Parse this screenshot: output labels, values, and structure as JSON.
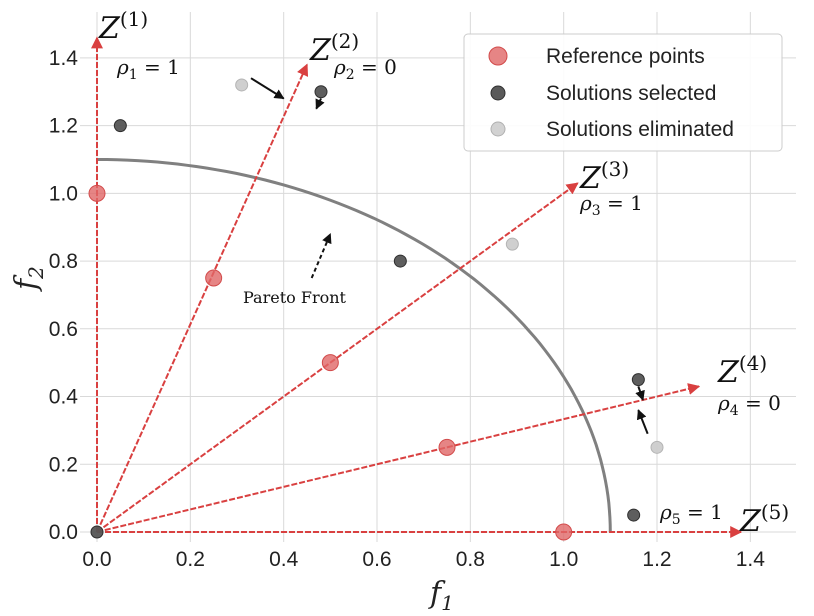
{
  "chart_data": {
    "type": "scatter",
    "xlabel": "f",
    "xlabel_sub": "1",
    "ylabel": "f",
    "ylabel_sub": "2",
    "xlim": [
      0.0,
      1.5
    ],
    "ylim": [
      0.0,
      1.5
    ],
    "xticks": [
      "0.0",
      "0.2",
      "0.4",
      "0.6",
      "0.8",
      "1.0",
      "1.2",
      "1.4"
    ],
    "yticks": [
      "0.0",
      "0.2",
      "0.4",
      "0.6",
      "0.8",
      "1.0",
      "1.2",
      "1.4"
    ],
    "grid": true,
    "legend_position": "top-right",
    "colors": {
      "reference": "#e06666",
      "selected": "#555555",
      "eliminated": "#cccccc",
      "arrows": "#d94040",
      "front": "#808080"
    },
    "series": [
      {
        "name": "Reference points",
        "points": [
          [
            0.0,
            1.0
          ],
          [
            0.25,
            0.75
          ],
          [
            0.5,
            0.5
          ],
          [
            0.75,
            0.25
          ],
          [
            1.0,
            0.0
          ]
        ]
      },
      {
        "name": "Solutions selected",
        "points": [
          [
            0.0,
            0.0
          ],
          [
            0.05,
            1.2
          ],
          [
            0.48,
            1.3
          ],
          [
            0.65,
            0.8
          ],
          [
            1.16,
            0.45
          ],
          [
            1.15,
            0.05
          ]
        ]
      },
      {
        "name": "Solutions eliminated",
        "points": [
          [
            0.31,
            1.32
          ],
          [
            0.89,
            0.85
          ],
          [
            1.2,
            0.25
          ]
        ]
      }
    ],
    "pareto_front": {
      "label": "Pareto Front",
      "radius_x": 1.1,
      "radius_y": 1.1,
      "x_end": 1.1
    },
    "reference_directions": [
      {
        "label": "Z",
        "sup": "(1)",
        "rho_sub": "1",
        "rho_value": "1",
        "end": [
          0.0,
          1.46
        ]
      },
      {
        "label": "Z",
        "sup": "(2)",
        "rho_sub": "2",
        "rho_value": "0",
        "end": [
          0.45,
          1.38
        ]
      },
      {
        "label": "Z",
        "sup": "(3)",
        "rho_sub": "3",
        "rho_value": "1",
        "end": [
          1.03,
          1.03
        ]
      },
      {
        "label": "Z",
        "sup": "(4)",
        "rho_sub": "4",
        "rho_value": "0",
        "end": [
          1.29,
          0.43
        ]
      },
      {
        "label": "Z",
        "sup": "(5)",
        "rho_sub": "5",
        "rho_value": "1",
        "end": [
          1.38,
          0.0
        ]
      }
    ],
    "annotation_arrows": [
      {
        "from": [
          0.33,
          1.34
        ],
        "to": [
          0.4,
          1.28
        ]
      },
      {
        "from": [
          0.48,
          1.28
        ],
        "to": [
          0.47,
          1.25
        ]
      },
      {
        "from": [
          1.16,
          0.43
        ],
        "to": [
          1.17,
          0.39
        ]
      },
      {
        "from": [
          1.18,
          0.29
        ],
        "to": [
          1.16,
          0.36
        ]
      },
      {
        "from": [
          0.46,
          0.75
        ],
        "to": [
          0.5,
          0.88
        ]
      }
    ]
  }
}
